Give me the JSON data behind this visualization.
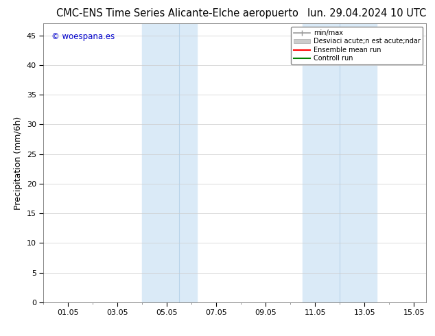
{
  "title_left": "CMC-ENS Time Series Alicante-Elche aeropuerto",
  "title_right": "lun. 29.04.2024 10 UTC",
  "ylabel": "Precipitation (mm/6h)",
  "xlabel": "",
  "ylim": [
    0,
    47
  ],
  "yticks": [
    0,
    5,
    10,
    15,
    20,
    25,
    30,
    35,
    40,
    45
  ],
  "xtick_labels": [
    "01.05",
    "03.05",
    "05.05",
    "07.05",
    "09.05",
    "11.05",
    "13.05",
    "15.05"
  ],
  "xtick_positions": [
    1,
    3,
    5,
    7,
    9,
    11,
    13,
    15
  ],
  "xlim": [
    0.0,
    15.5
  ],
  "shaded_band1_x0": 4.0,
  "shaded_band1_x1": 6.2,
  "shaded_band1_mid": 5.5,
  "shaded_band2_x0": 10.5,
  "shaded_band2_x1": 13.5,
  "shaded_band2_mid": 12.0,
  "shaded_color": "#daeaf7",
  "shaded_line_color": "#b8d4ea",
  "watermark_text": "© woespana.es",
  "watermark_color": "#0000cc",
  "legend_label1": "min/max",
  "legend_label2": "Desviaci acute;n est acute;ndar",
  "legend_label3": "Ensemble mean run",
  "legend_label4": "Controll run",
  "legend_color1": "#999999",
  "legend_color2": "#cccccc",
  "legend_color3": "#ff0000",
  "legend_color4": "#008000",
  "bg_color": "#ffffff",
  "grid_color": "#cccccc",
  "tick_color": "#000000",
  "title_fontsize": 10.5,
  "axis_label_fontsize": 9,
  "tick_fontsize": 8
}
